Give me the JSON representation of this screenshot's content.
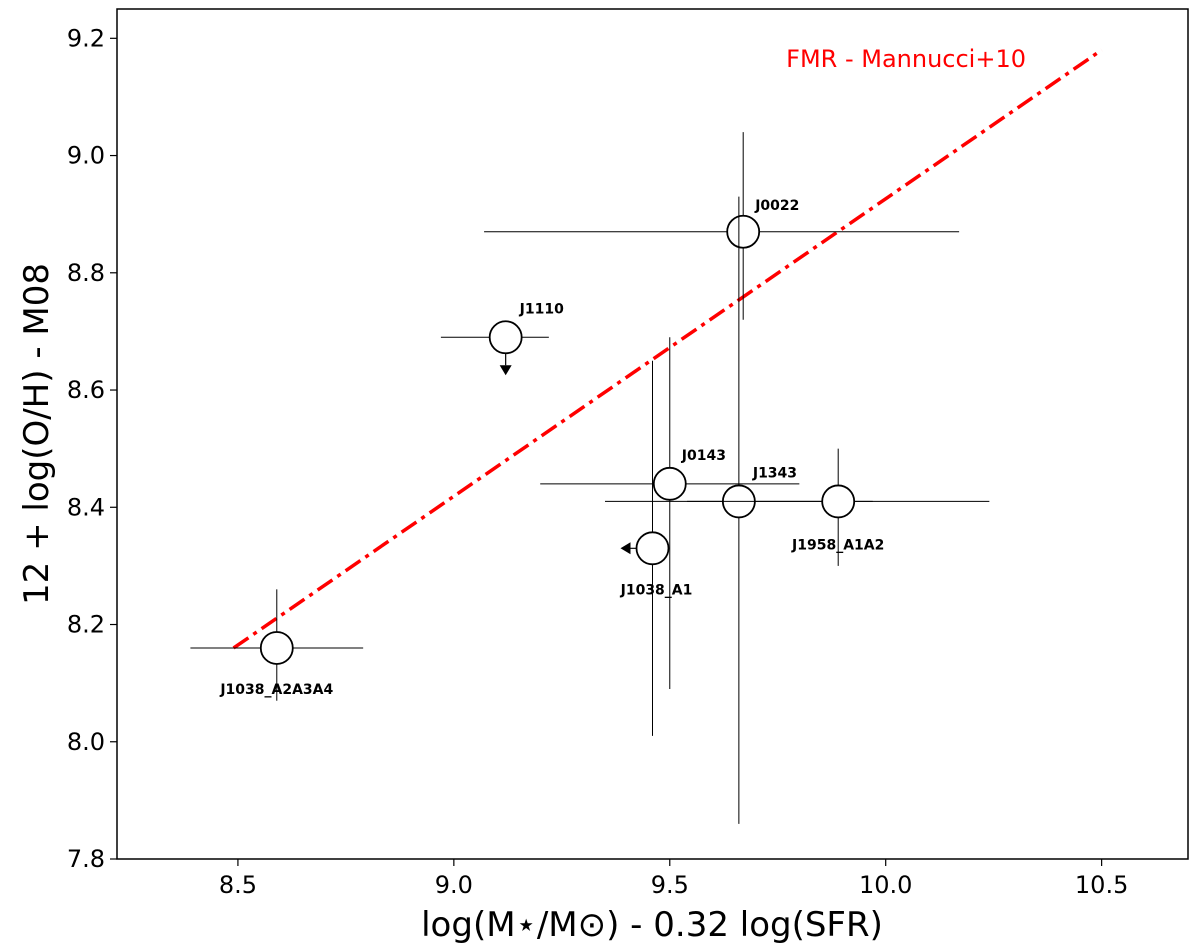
{
  "chart_data": {
    "type": "scatter",
    "xlabel": "log(M⋆/M⊙) - 0.32 log(SFR)",
    "ylabel": "12 + log(O/H) - M08",
    "xlim": [
      8.22,
      10.7
    ],
    "ylim": [
      7.8,
      9.25
    ],
    "xticks": [
      "8.5",
      "9.0",
      "9.5",
      "10.0",
      "10.5"
    ],
    "yticks": [
      "7.8",
      "8.0",
      "8.2",
      "8.4",
      "8.6",
      "8.8",
      "9.0",
      "9.2"
    ],
    "grid": false,
    "points": [
      {
        "label": "J0022",
        "x": 9.67,
        "y": 8.87,
        "xerr": [
          9.07,
          10.17
        ],
        "yerr": [
          8.72,
          9.04
        ],
        "limit": "none"
      },
      {
        "label": "J1110",
        "x": 9.12,
        "y": 8.69,
        "xerr": [
          8.97,
          9.22
        ],
        "yerr": [
          8.69,
          8.69
        ],
        "limit": "upper-y"
      },
      {
        "label": "J0143",
        "x": 9.5,
        "y": 8.44,
        "xerr": [
          9.2,
          9.8
        ],
        "yerr": [
          8.09,
          8.69
        ],
        "limit": "none"
      },
      {
        "label": "J1343",
        "x": 9.66,
        "y": 8.41,
        "xerr": [
          9.35,
          9.97
        ],
        "yerr": [
          7.86,
          8.93
        ],
        "limit": "none"
      },
      {
        "label": "J1958_A1A2",
        "x": 9.89,
        "y": 8.41,
        "xerr": [
          9.54,
          10.24
        ],
        "yerr": [
          8.3,
          8.5
        ],
        "limit": "none"
      },
      {
        "label": "J1038_A1",
        "x": 9.46,
        "y": 8.33,
        "xerr": [
          9.46,
          9.46
        ],
        "yerr": [
          8.01,
          8.65
        ],
        "limit": "upper-x"
      },
      {
        "label": "J1038_A2A3A4",
        "x": 8.59,
        "y": 8.16,
        "xerr": [
          8.39,
          8.79
        ],
        "yerr": [
          8.07,
          8.26
        ],
        "limit": "none"
      }
    ],
    "lines": [
      {
        "name": "FMR - Mannucci+10",
        "color": "#ff0000",
        "style": "dash-dot",
        "x": [
          8.49,
          10.5
        ],
        "y": [
          8.16,
          9.18
        ]
      }
    ]
  }
}
